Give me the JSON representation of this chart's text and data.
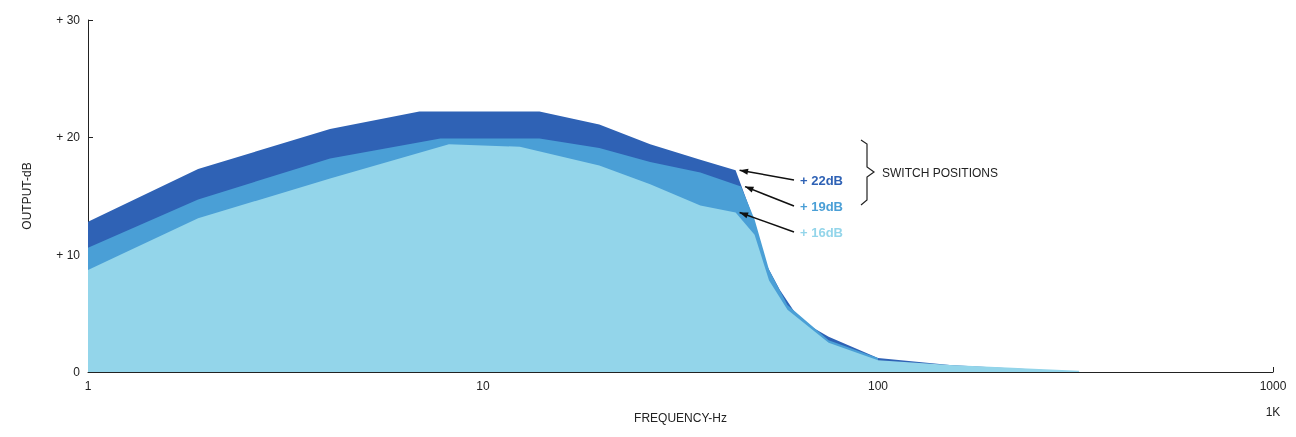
{
  "chart_data": {
    "type": "area",
    "xlabel": "FREQUENCY-Hz",
    "ylabel": "OUTPUT-dB",
    "log": "x",
    "xlim": [
      1,
      1000
    ],
    "xticks": [
      1,
      10,
      100,
      1000
    ],
    "ylim": [
      0,
      30
    ],
    "yticks": [
      {
        "value": 0,
        "label": "0"
      },
      {
        "value": 10,
        "label": "+ 10"
      },
      {
        "value": 20,
        "label": "+ 20"
      },
      {
        "value": 30,
        "label": "+ 30"
      }
    ],
    "grid": false,
    "legend": false,
    "series": [
      {
        "name": "+ 22dB",
        "color": "#2f62b5",
        "x": [
          1,
          1.9,
          4.1,
          6.9,
          13.9,
          19.7,
          26.5,
          35.5,
          43.6,
          47.5,
          51.5,
          56.4,
          63.5,
          75,
          100,
          152,
          323
        ],
        "values": [
          12.8,
          17.3,
          20.7,
          22.2,
          22.2,
          21.1,
          19.4,
          18.1,
          17.2,
          13.8,
          9.5,
          7,
          4.4,
          3,
          1.2,
          0.6,
          0
        ]
      },
      {
        "name": "+ 19dB",
        "color": "#4a9fd6",
        "x": [
          1,
          1.9,
          4.1,
          7.8,
          13.9,
          19.7,
          26.5,
          35.5,
          45,
          48.7,
          53,
          59,
          75,
          100
        ],
        "values": [
          10.6,
          14.7,
          18.2,
          19.9,
          19.9,
          19.1,
          17.9,
          17,
          15.8,
          13,
          8.7,
          5.7,
          2.7,
          1.2
        ]
      },
      {
        "name": "+ 16dB",
        "color": "#93d5ea",
        "x": [
          1,
          1.9,
          4.1,
          8.2,
          12.4,
          19.7,
          26.5,
          35.5,
          43.6,
          48.7,
          53,
          59,
          75,
          100,
          152,
          323
        ],
        "values": [
          8.7,
          13.1,
          16.5,
          19.4,
          19.2,
          17.6,
          16,
          14.2,
          13.6,
          11.7,
          7.8,
          5.3,
          2.5,
          1,
          0.6,
          0.1
        ]
      }
    ],
    "annotations": [
      "SWITCH POSITIONS",
      "1K"
    ]
  }
}
